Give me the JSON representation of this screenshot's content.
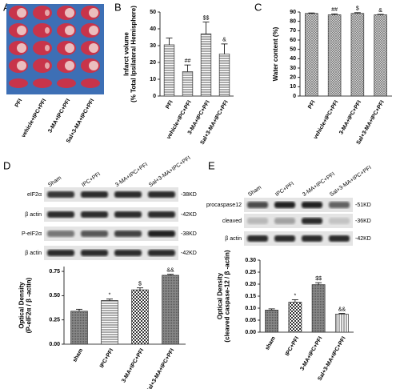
{
  "figure_a": {
    "panel": "A",
    "labels": [
      "PFI",
      "vehicle+IPC+PFI",
      "3-MA+IPC+PFI",
      "Sal+3-MA+IPC+PFI"
    ]
  },
  "blot_d": {
    "panel": "D",
    "columns": [
      "Sham",
      "IPC+PFI",
      "3-MA+IPC+PFI",
      "Sal+3-MA+IPC+PFI"
    ],
    "rows": [
      "eIF2α",
      "β actin",
      "P-eIF2α",
      "β actin"
    ],
    "sizes": [
      "-38KD",
      "-42KD",
      "-38KD",
      "-42KD"
    ]
  },
  "blot_e": {
    "panel": "E",
    "columns": [
      "Sham",
      "IPC+PFI",
      "3-MA+IPC+PFI",
      "Sal+3-MA+IPC+PFI"
    ],
    "rows": [
      "procaspase12",
      "cleaved",
      "β actin"
    ],
    "sizes": [
      "-51KD",
      "-36KD",
      "-42KD"
    ]
  },
  "chart_data": [
    {
      "type": "bar",
      "panel": "B",
      "ylabel": [
        "Infarct volume",
        "(% Total Ipsilateral Hemisphere)"
      ],
      "categories": [
        "PFI",
        "vehicle+IPC+PFI",
        "3-MA+IPC+PFI",
        "Sal+3-MA+IPC+PFI"
      ],
      "values": [
        30.5,
        14.5,
        37,
        25
      ],
      "errors": [
        4,
        4,
        7,
        6
      ],
      "annotations": [
        null,
        "##",
        "$$",
        "&"
      ],
      "ylim": [
        0,
        50
      ],
      "yticks": [
        0,
        10,
        20,
        30,
        40,
        50
      ]
    },
    {
      "type": "bar",
      "panel": "C",
      "ylabel": [
        "Water content (%)"
      ],
      "categories": [
        "PFI",
        "vehicle+IPC+PFI",
        "3-MA+IPC+PFI",
        "Sal+3-MA+IPC+PFI"
      ],
      "values": [
        88.5,
        87,
        88.5,
        87
      ],
      "errors": [
        0.5,
        1,
        0.8,
        0.5
      ],
      "annotations": [
        null,
        "##",
        "$",
        "&"
      ],
      "ylim": [
        0,
        90
      ],
      "yticks": [
        0,
        10,
        20,
        30,
        40,
        50,
        60,
        70,
        80,
        90
      ]
    },
    {
      "type": "bar",
      "panel": null,
      "ylabel": [
        "Optical Density",
        "(P-eIF2α / β -actin)"
      ],
      "categories": [
        "sham",
        "IPC+PFI",
        "3-MA+IPC+PFI",
        "Sal+3-MA+IPC+PFI"
      ],
      "values": [
        0.34,
        0.45,
        0.56,
        0.71
      ],
      "errors": [
        0.02,
        0.015,
        0.02,
        0.01
      ],
      "annotations": [
        null,
        "*",
        "$",
        "&&"
      ],
      "ylim": [
        0,
        0.8
      ],
      "yticks": [
        {
          "value": 0,
          "label": "0.00"
        },
        0.25,
        {
          "value": 0.5,
          "label": "0.50"
        },
        0.75
      ]
    },
    {
      "type": "bar",
      "panel": null,
      "ylabel": [
        "Optical Density",
        "(cleaved caspase-12 / β -actin)"
      ],
      "categories": [
        "sham",
        "IPC+PFI",
        "3-MA+IPC+PFI",
        "Sal+3-MA+IPC+PFI"
      ],
      "values": [
        0.092,
        0.125,
        0.198,
        0.075
      ],
      "errors": [
        0.005,
        0.01,
        0.008,
        0.003
      ],
      "annotations": [
        null,
        "*",
        "$$",
        "&&"
      ],
      "ylim": [
        0,
        0.3
      ],
      "yticks": [
        {
          "value": 0,
          "label": "0.00"
        },
        0.05,
        {
          "value": 0.1,
          "label": "0.10"
        },
        0.15,
        {
          "value": 0.2,
          "label": "0.20"
        },
        0.25,
        {
          "value": 0.3,
          "label": "0.30"
        }
      ]
    }
  ]
}
